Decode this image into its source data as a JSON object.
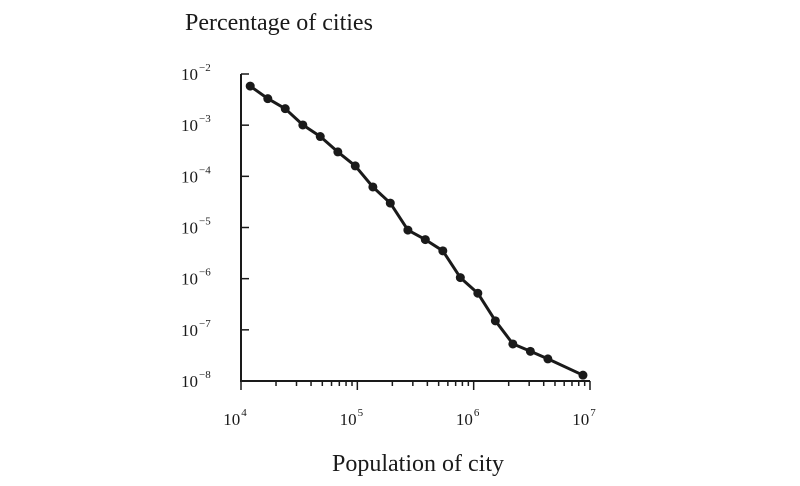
{
  "chart_data": {
    "type": "line",
    "xlabel": "Population of city",
    "ylabel": "Percentage of cities",
    "x_scale": "log",
    "y_scale": "log",
    "xlim": [
      10000,
      10000000
    ],
    "ylim": [
      1e-08,
      0.01
    ],
    "x_ticks": [
      {
        "base": "10",
        "exp": "4",
        "value": 10000
      },
      {
        "base": "10",
        "exp": "5",
        "value": 100000
      },
      {
        "base": "10",
        "exp": "6",
        "value": 1000000
      },
      {
        "base": "10",
        "exp": "7",
        "value": 10000000
      }
    ],
    "y_ticks": [
      {
        "base": "10",
        "exp": "−2",
        "value": 0.01
      },
      {
        "base": "10",
        "exp": "−3",
        "value": 0.001
      },
      {
        "base": "10",
        "exp": "−4",
        "value": 0.0001
      },
      {
        "base": "10",
        "exp": "−5",
        "value": 1e-05
      },
      {
        "base": "10",
        "exp": "−6",
        "value": 1e-06
      },
      {
        "base": "10",
        "exp": "−7",
        "value": 1e-07
      },
      {
        "base": "10",
        "exp": "−8",
        "value": 1e-08
      }
    ],
    "grid": false,
    "series": [
      {
        "x": [
          12000,
          17000,
          24000,
          34000,
          48000,
          68000,
          96000,
          136000,
          192000,
          272000,
          384000,
          543000,
          768000,
          1086000,
          1536000,
          2172000,
          3072000,
          4345000,
          8700000
        ],
        "y": [
          0.0058,
          0.0033,
          0.0021,
          0.00101,
          0.0006,
          0.0003,
          0.00016,
          6.2e-05,
          3e-05,
          8.9e-06,
          5.8e-06,
          3.5e-06,
          1.05e-06,
          5.2e-07,
          1.5e-07,
          5.3e-08,
          3.8e-08,
          2.7e-08,
          1.3e-08
        ]
      }
    ],
    "color": "#1a1a1a"
  }
}
